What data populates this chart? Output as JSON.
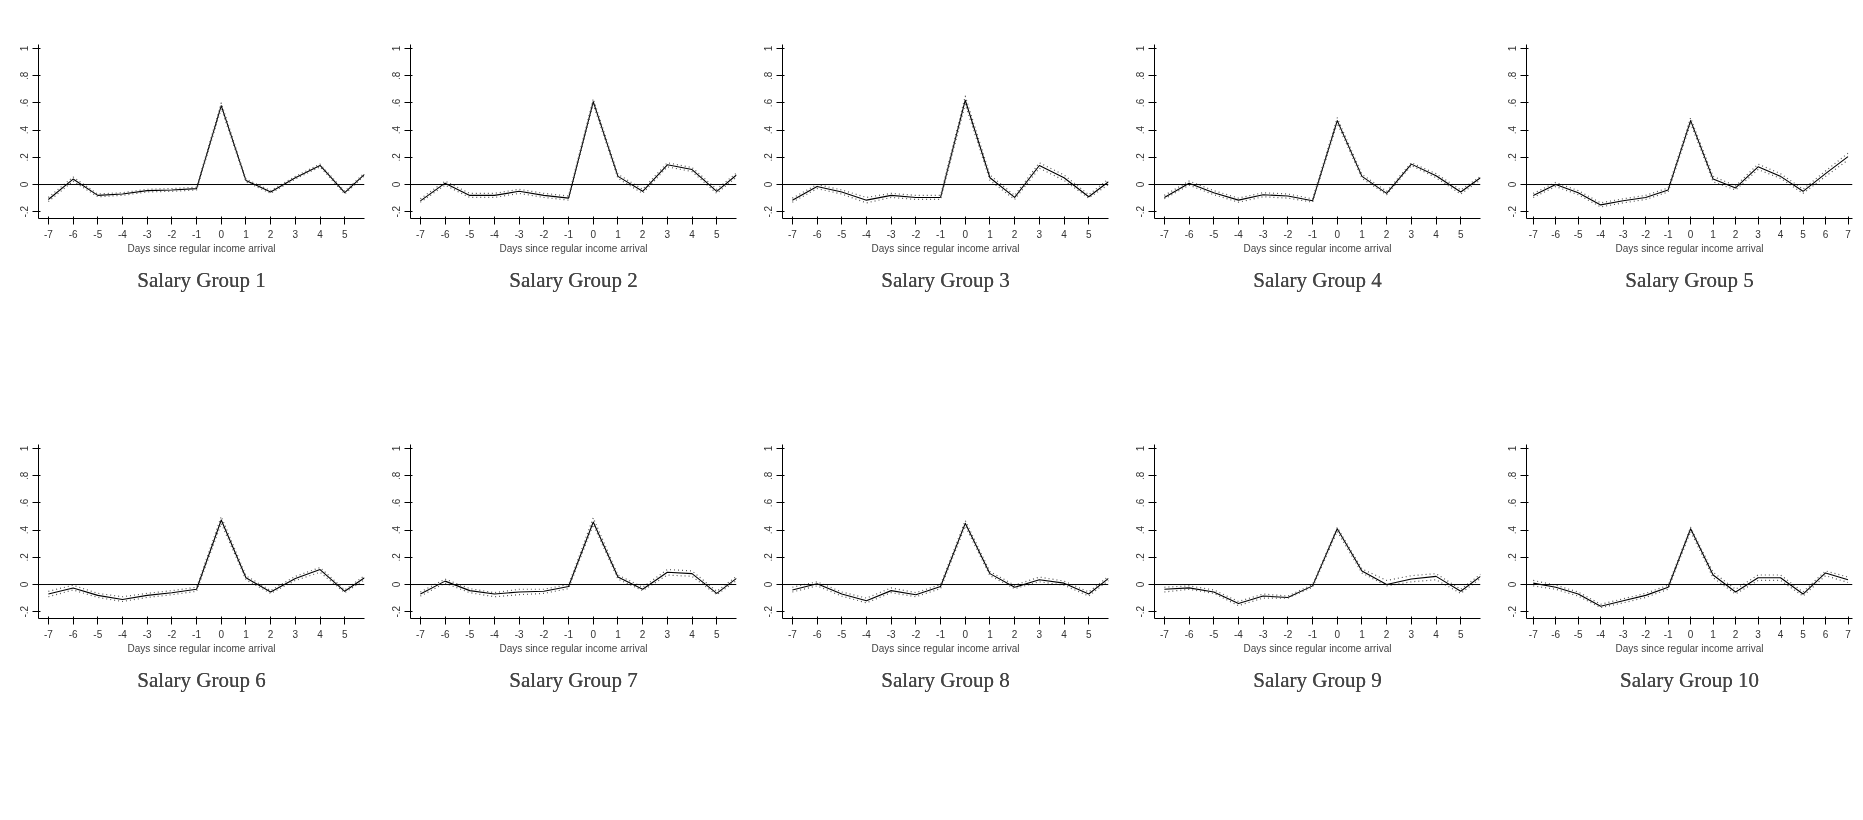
{
  "chart_data": [
    {
      "type": "line",
      "title": "Salary Group 1",
      "xlabel": "Days since regular income arrival",
      "x": [
        -7,
        -6,
        -5,
        -4,
        -3,
        -2,
        -1,
        0,
        1,
        2,
        3,
        4,
        5,
        5.8
      ],
      "xlim": [
        -7.4,
        5.8
      ],
      "xticks": [
        -7,
        -6,
        -5,
        -4,
        -3,
        -2,
        -1,
        0,
        1,
        2,
        3,
        4,
        5
      ],
      "ylim": [
        -0.25,
        1.03
      ],
      "yticks": [
        {
          "value": -0.2,
          "label": "-.2"
        },
        0,
        {
          "value": 0.2,
          "label": ".2"
        },
        {
          "value": 0.4,
          "label": ".4"
        },
        {
          "value": 0.6,
          "label": ".6"
        },
        {
          "value": 0.8,
          "label": ".8"
        },
        1
      ],
      "ref_lines": [
        {
          "axis": "y",
          "value": 0,
          "label": null,
          "color": "#000000"
        }
      ],
      "series": [
        {
          "color": "#000000",
          "line_style": "solid",
          "values": [
            -0.11,
            0.04,
            -0.08,
            -0.07,
            -0.045,
            -0.04,
            -0.03,
            0.58,
            0.03,
            -0.055,
            0.05,
            0.14,
            -0.06,
            0.075
          ]
        },
        {
          "color": "#555555",
          "line_style": "dotted",
          "values": [
            -0.125,
            0.025,
            -0.09,
            -0.08,
            -0.055,
            -0.05,
            -0.04,
            0.56,
            0.02,
            -0.065,
            0.04,
            0.13,
            -0.07,
            0.065
          ]
        },
        {
          "color": "#555555",
          "line_style": "dotted",
          "values": [
            -0.095,
            0.055,
            -0.07,
            -0.06,
            -0.035,
            -0.03,
            -0.02,
            0.6,
            0.04,
            -0.045,
            0.06,
            0.15,
            -0.05,
            0.085
          ]
        }
      ]
    },
    {
      "type": "line",
      "title": "Salary Group 2",
      "xlabel": "Days since regular income arrival",
      "x": [
        -7,
        -6,
        -5,
        -4,
        -3,
        -2,
        -1,
        0,
        1,
        2,
        3,
        4,
        5,
        5.8
      ],
      "xlim": [
        -7.4,
        5.8
      ],
      "xticks": [
        -7,
        -6,
        -5,
        -4,
        -3,
        -2,
        -1,
        0,
        1,
        2,
        3,
        4,
        5
      ],
      "ylim": [
        -0.25,
        1.03
      ],
      "yticks": [
        {
          "value": -0.2,
          "label": "-.2"
        },
        0,
        {
          "value": 0.2,
          "label": ".2"
        },
        {
          "value": 0.4,
          "label": ".4"
        },
        {
          "value": 0.6,
          "label": ".6"
        },
        {
          "value": 0.8,
          "label": ".8"
        },
        1
      ],
      "ref_lines": [
        {
          "axis": "y",
          "value": 0,
          "label": null,
          "color": "#000000"
        }
      ],
      "series": [
        {
          "color": "#000000",
          "line_style": "solid",
          "values": [
            -0.12,
            0.01,
            -0.08,
            -0.08,
            -0.05,
            -0.08,
            -0.1,
            0.61,
            0.06,
            -0.05,
            0.145,
            0.11,
            -0.05,
            0.07
          ]
        },
        {
          "color": "#555555",
          "line_style": "dotted",
          "values": [
            -0.13,
            -0.005,
            -0.095,
            -0.095,
            -0.065,
            -0.095,
            -0.115,
            0.59,
            0.045,
            -0.065,
            0.13,
            0.095,
            -0.065,
            0.055
          ]
        },
        {
          "color": "#555555",
          "line_style": "dotted",
          "values": [
            -0.105,
            0.025,
            -0.065,
            -0.065,
            -0.035,
            -0.065,
            -0.085,
            0.63,
            0.075,
            -0.035,
            0.16,
            0.125,
            -0.035,
            0.085
          ]
        }
      ]
    },
    {
      "type": "line",
      "title": "Salary Group 3",
      "xlabel": "Days since regular income arrival",
      "x": [
        -7,
        -6,
        -5,
        -4,
        -3,
        -2,
        -1,
        0,
        1,
        2,
        3,
        4,
        5,
        5.8
      ],
      "xlim": [
        -7.4,
        5.8
      ],
      "xticks": [
        -7,
        -6,
        -5,
        -4,
        -3,
        -2,
        -1,
        0,
        1,
        2,
        3,
        4,
        5
      ],
      "ylim": [
        -0.25,
        1.03
      ],
      "yticks": [
        {
          "value": -0.2,
          "label": "-.2"
        },
        0,
        {
          "value": 0.2,
          "label": ".2"
        },
        {
          "value": 0.4,
          "label": ".4"
        },
        {
          "value": 0.6,
          "label": ".6"
        },
        {
          "value": 0.8,
          "label": ".8"
        },
        1
      ],
      "ref_lines": [
        {
          "axis": "y",
          "value": 0,
          "label": null,
          "color": "#000000"
        }
      ],
      "series": [
        {
          "color": "#000000",
          "line_style": "solid",
          "values": [
            -0.115,
            -0.015,
            -0.055,
            -0.115,
            -0.08,
            -0.095,
            -0.095,
            0.62,
            0.05,
            -0.095,
            0.14,
            0.05,
            -0.09,
            0.02
          ]
        },
        {
          "color": "#555555",
          "line_style": "dotted",
          "values": [
            -0.13,
            -0.03,
            -0.07,
            -0.135,
            -0.095,
            -0.11,
            -0.11,
            0.59,
            0.03,
            -0.11,
            0.12,
            0.03,
            -0.1,
            0.0
          ]
        },
        {
          "color": "#555555",
          "line_style": "dotted",
          "values": [
            -0.1,
            0.0,
            -0.04,
            -0.095,
            -0.065,
            -0.08,
            -0.08,
            0.65,
            0.07,
            -0.08,
            0.16,
            0.07,
            -0.075,
            0.04
          ]
        }
      ]
    },
    {
      "type": "line",
      "title": "Salary Group 4",
      "xlabel": "Days since regular income arrival",
      "x": [
        -7,
        -6,
        -5,
        -4,
        -3,
        -2,
        -1,
        0,
        1,
        2,
        3,
        4,
        5,
        5.8
      ],
      "xlim": [
        -7.4,
        5.8
      ],
      "xticks": [
        -7,
        -6,
        -5,
        -4,
        -3,
        -2,
        -1,
        0,
        1,
        2,
        3,
        4,
        5
      ],
      "ylim": [
        -0.25,
        1.03
      ],
      "yticks": [
        {
          "value": -0.2,
          "label": "-.2"
        },
        0,
        {
          "value": 0.2,
          "label": ".2"
        },
        {
          "value": 0.4,
          "label": ".4"
        },
        {
          "value": 0.6,
          "label": ".6"
        },
        {
          "value": 0.8,
          "label": ".8"
        },
        1
      ],
      "ref_lines": [
        {
          "axis": "y",
          "value": 0,
          "label": null,
          "color": "#000000"
        }
      ],
      "series": [
        {
          "color": "#000000",
          "line_style": "solid",
          "values": [
            -0.095,
            0.01,
            -0.06,
            -0.115,
            -0.075,
            -0.085,
            -0.12,
            0.47,
            0.06,
            -0.065,
            0.15,
            0.065,
            -0.055,
            0.05
          ]
        },
        {
          "color": "#555555",
          "line_style": "dotted",
          "values": [
            -0.105,
            -0.005,
            -0.075,
            -0.13,
            -0.09,
            -0.1,
            -0.13,
            0.45,
            0.045,
            -0.075,
            0.14,
            0.05,
            -0.07,
            0.035
          ]
        },
        {
          "color": "#555555",
          "line_style": "dotted",
          "values": [
            -0.08,
            0.025,
            -0.045,
            -0.1,
            -0.06,
            -0.07,
            -0.105,
            0.49,
            0.075,
            -0.05,
            0.16,
            0.08,
            -0.04,
            0.06
          ]
        }
      ]
    },
    {
      "type": "line",
      "title": "Salary Group 5",
      "xlabel": "Days since regular income arrival",
      "x": [
        -7,
        -6,
        -5,
        -4,
        -3,
        -2,
        -1,
        0,
        1,
        2,
        3,
        4,
        5,
        6,
        7
      ],
      "xlim": [
        -7.3,
        7.2
      ],
      "xticks": [
        -7,
        -6,
        -5,
        -4,
        -3,
        -2,
        -1,
        0,
        1,
        2,
        3,
        4,
        5,
        6,
        7
      ],
      "ylim": [
        -0.25,
        1.03
      ],
      "yticks": [
        {
          "value": -0.2,
          "label": "-.2"
        },
        0,
        {
          "value": 0.2,
          "label": ".2"
        },
        {
          "value": 0.4,
          "label": ".4"
        },
        {
          "value": 0.6,
          "label": ".6"
        },
        {
          "value": 0.8,
          "label": ".8"
        },
        1
      ],
      "ref_lines": [
        {
          "axis": "y",
          "value": 0,
          "label": null,
          "color": "#000000"
        }
      ],
      "series": [
        {
          "color": "#000000",
          "line_style": "solid",
          "values": [
            -0.08,
            0.0,
            -0.06,
            -0.15,
            -0.12,
            -0.095,
            -0.04,
            0.47,
            0.04,
            -0.025,
            0.13,
            0.06,
            -0.05,
            0.08,
            0.205
          ]
        },
        {
          "color": "#555555",
          "line_style": "dotted",
          "values": [
            -0.095,
            -0.015,
            -0.075,
            -0.165,
            -0.135,
            -0.11,
            -0.055,
            0.45,
            0.02,
            -0.04,
            0.11,
            0.045,
            -0.065,
            0.06,
            0.18
          ]
        },
        {
          "color": "#555555",
          "line_style": "dotted",
          "values": [
            -0.065,
            0.015,
            -0.045,
            -0.135,
            -0.105,
            -0.08,
            -0.025,
            0.49,
            0.06,
            -0.01,
            0.15,
            0.08,
            -0.035,
            0.1,
            0.23
          ]
        }
      ]
    },
    {
      "type": "line",
      "title": "Salary Group 6",
      "xlabel": "Days since regular income arrival",
      "x": [
        -7,
        -6,
        -5,
        -4,
        -3,
        -2,
        -1,
        0,
        1,
        2,
        3,
        4,
        5,
        5.8
      ],
      "xlim": [
        -7.4,
        5.8
      ],
      "xticks": [
        -7,
        -6,
        -5,
        -4,
        -3,
        -2,
        -1,
        0,
        1,
        2,
        3,
        4,
        5
      ],
      "ylim": [
        -0.25,
        1.03
      ],
      "yticks": [
        {
          "value": -0.2,
          "label": "-.2"
        },
        0,
        {
          "value": 0.2,
          "label": ".2"
        },
        {
          "value": 0.4,
          "label": ".4"
        },
        {
          "value": 0.6,
          "label": ".6"
        },
        {
          "value": 0.8,
          "label": ".8"
        },
        1
      ],
      "ref_lines": [
        {
          "axis": "y",
          "value": 0,
          "label": null,
          "color": "#000000"
        }
      ],
      "series": [
        {
          "color": "#000000",
          "line_style": "solid",
          "values": [
            -0.07,
            -0.025,
            -0.08,
            -0.11,
            -0.08,
            -0.06,
            -0.035,
            0.475,
            0.05,
            -0.055,
            0.045,
            0.11,
            -0.05,
            0.05
          ]
        },
        {
          "color": "#555555",
          "line_style": "dotted",
          "values": [
            -0.09,
            -0.04,
            -0.095,
            -0.125,
            -0.095,
            -0.075,
            -0.05,
            0.45,
            0.035,
            -0.065,
            0.03,
            0.09,
            -0.06,
            0.035
          ]
        },
        {
          "color": "#555555",
          "line_style": "dotted",
          "values": [
            -0.05,
            -0.005,
            -0.065,
            -0.09,
            -0.065,
            -0.045,
            -0.02,
            0.5,
            0.065,
            -0.045,
            0.06,
            0.125,
            -0.04,
            0.065
          ]
        }
      ]
    },
    {
      "type": "line",
      "title": "Salary Group 7",
      "xlabel": "Days since regular income arrival",
      "x": [
        -7,
        -6,
        -5,
        -4,
        -3,
        -2,
        -1,
        0,
        1,
        2,
        3,
        4,
        5,
        5.8
      ],
      "xlim": [
        -7.4,
        5.8
      ],
      "xticks": [
        -7,
        -6,
        -5,
        -4,
        -3,
        -2,
        -1,
        0,
        1,
        2,
        3,
        4,
        5
      ],
      "ylim": [
        -0.25,
        1.03
      ],
      "yticks": [
        {
          "value": -0.2,
          "label": "-.2"
        },
        0,
        {
          "value": 0.2,
          "label": ".2"
        },
        {
          "value": 0.4,
          "label": ".4"
        },
        {
          "value": 0.6,
          "label": ".6"
        },
        {
          "value": 0.8,
          "label": ".8"
        },
        1
      ],
      "ref_lines": [
        {
          "axis": "y",
          "value": 0,
          "label": null,
          "color": "#000000"
        }
      ],
      "series": [
        {
          "color": "#000000",
          "line_style": "solid",
          "values": [
            -0.07,
            0.025,
            -0.045,
            -0.07,
            -0.055,
            -0.05,
            -0.015,
            0.46,
            0.055,
            -0.035,
            0.09,
            0.08,
            -0.065,
            0.045
          ]
        },
        {
          "color": "#555555",
          "line_style": "dotted",
          "values": [
            -0.085,
            0.01,
            -0.06,
            -0.09,
            -0.075,
            -0.065,
            -0.03,
            0.44,
            0.04,
            -0.045,
            0.07,
            0.06,
            -0.075,
            0.03
          ]
        },
        {
          "color": "#555555",
          "line_style": "dotted",
          "values": [
            -0.055,
            0.04,
            -0.03,
            -0.06,
            -0.035,
            -0.035,
            0.0,
            0.49,
            0.07,
            -0.02,
            0.11,
            0.1,
            -0.05,
            0.06
          ]
        }
      ]
    },
    {
      "type": "line",
      "title": "Salary Group 8",
      "xlabel": "Days since regular income arrival",
      "x": [
        -7,
        -6,
        -5,
        -4,
        -3,
        -2,
        -1,
        0,
        1,
        2,
        3,
        4,
        5,
        5.8
      ],
      "xlim": [
        -7.4,
        5.8
      ],
      "xticks": [
        -7,
        -6,
        -5,
        -4,
        -3,
        -2,
        -1,
        0,
        1,
        2,
        3,
        4,
        5
      ],
      "ylim": [
        -0.25,
        1.03
      ],
      "yticks": [
        {
          "value": -0.2,
          "label": "-.2"
        },
        0,
        {
          "value": 0.2,
          "label": ".2"
        },
        {
          "value": 0.4,
          "label": ".4"
        },
        {
          "value": 0.6,
          "label": ".6"
        },
        {
          "value": 0.8,
          "label": ".8"
        },
        1
      ],
      "ref_lines": [
        {
          "axis": "y",
          "value": 0,
          "label": null,
          "color": "#000000"
        }
      ],
      "series": [
        {
          "color": "#000000",
          "line_style": "solid",
          "values": [
            -0.04,
            0.005,
            -0.07,
            -0.12,
            -0.045,
            -0.075,
            -0.015,
            0.45,
            0.08,
            -0.02,
            0.035,
            0.01,
            -0.07,
            0.045
          ]
        },
        {
          "color": "#555555",
          "line_style": "dotted",
          "values": [
            -0.055,
            -0.01,
            -0.085,
            -0.135,
            -0.06,
            -0.09,
            -0.03,
            0.43,
            0.065,
            -0.03,
            0.02,
            -0.005,
            -0.085,
            0.03
          ]
        },
        {
          "color": "#555555",
          "line_style": "dotted",
          "values": [
            -0.02,
            0.02,
            -0.055,
            -0.1,
            -0.025,
            -0.06,
            0.0,
            0.47,
            0.095,
            -0.005,
            0.055,
            0.025,
            -0.055,
            0.06
          ]
        }
      ]
    },
    {
      "type": "line",
      "title": "Salary Group 9",
      "xlabel": "Days since regular income arrival",
      "x": [
        -7,
        -6,
        -5,
        -4,
        -3,
        -2,
        -1,
        0,
        1,
        2,
        3,
        4,
        5,
        5.8
      ],
      "xlim": [
        -7.4,
        5.8
      ],
      "xticks": [
        -7,
        -6,
        -5,
        -4,
        -3,
        -2,
        -1,
        0,
        1,
        2,
        3,
        4,
        5
      ],
      "ylim": [
        -0.25,
        1.03
      ],
      "yticks": [
        {
          "value": -0.2,
          "label": "-.2"
        },
        0,
        {
          "value": 0.2,
          "label": ".2"
        },
        {
          "value": 0.4,
          "label": ".4"
        },
        {
          "value": 0.6,
          "label": ".6"
        },
        {
          "value": 0.8,
          "label": ".8"
        },
        1
      ],
      "ref_lines": [
        {
          "axis": "y",
          "value": 0,
          "label": null,
          "color": "#000000"
        }
      ],
      "series": [
        {
          "color": "#000000",
          "line_style": "solid",
          "values": [
            -0.035,
            -0.025,
            -0.055,
            -0.14,
            -0.085,
            -0.095,
            -0.01,
            0.41,
            0.1,
            0.0,
            0.04,
            0.06,
            -0.05,
            0.06
          ]
        },
        {
          "color": "#555555",
          "line_style": "dotted",
          "values": [
            -0.055,
            -0.035,
            -0.065,
            -0.155,
            -0.1,
            -0.1,
            -0.02,
            0.39,
            0.085,
            -0.01,
            0.02,
            0.035,
            -0.065,
            0.045
          ]
        },
        {
          "color": "#555555",
          "line_style": "dotted",
          "values": [
            -0.02,
            -0.01,
            -0.04,
            -0.125,
            -0.07,
            -0.085,
            0.0,
            0.42,
            0.115,
            0.03,
            0.065,
            0.08,
            -0.035,
            0.075
          ]
        }
      ]
    },
    {
      "type": "line",
      "title": "Salary Group 10",
      "xlabel": "Days since regular income arrival",
      "x": [
        -7,
        -6,
        -5,
        -4,
        -3,
        -2,
        -1,
        0,
        1,
        2,
        3,
        4,
        5,
        6,
        7
      ],
      "xlim": [
        -7.3,
        7.2
      ],
      "xticks": [
        -7,
        -6,
        -5,
        -4,
        -3,
        -2,
        -1,
        0,
        1,
        2,
        3,
        4,
        5,
        6,
        7
      ],
      "ylim": [
        -0.25,
        1.03
      ],
      "yticks": [
        {
          "value": -0.2,
          "label": "-.2"
        },
        0,
        {
          "value": 0.2,
          "label": ".2"
        },
        {
          "value": 0.4,
          "label": ".4"
        },
        {
          "value": 0.6,
          "label": ".6"
        },
        {
          "value": 0.8,
          "label": ".8"
        },
        1
      ],
      "ref_lines": [
        {
          "axis": "y",
          "value": 0,
          "label": null,
          "color": "#000000"
        }
      ],
      "series": [
        {
          "color": "#000000",
          "line_style": "solid",
          "values": [
            0.01,
            -0.02,
            -0.07,
            -0.16,
            -0.12,
            -0.08,
            -0.02,
            0.41,
            0.07,
            -0.055,
            0.05,
            0.05,
            -0.07,
            0.085,
            0.035
          ]
        },
        {
          "color": "#555555",
          "line_style": "dotted",
          "values": [
            -0.01,
            -0.035,
            -0.085,
            -0.17,
            -0.135,
            -0.095,
            -0.035,
            0.39,
            0.05,
            -0.07,
            0.03,
            0.03,
            -0.085,
            0.065,
            0.015
          ]
        },
        {
          "color": "#555555",
          "line_style": "dotted",
          "values": [
            0.03,
            -0.005,
            -0.055,
            -0.145,
            -0.105,
            -0.065,
            -0.005,
            0.42,
            0.09,
            -0.035,
            0.07,
            0.07,
            -0.055,
            0.1,
            0.055
          ]
        }
      ]
    }
  ]
}
